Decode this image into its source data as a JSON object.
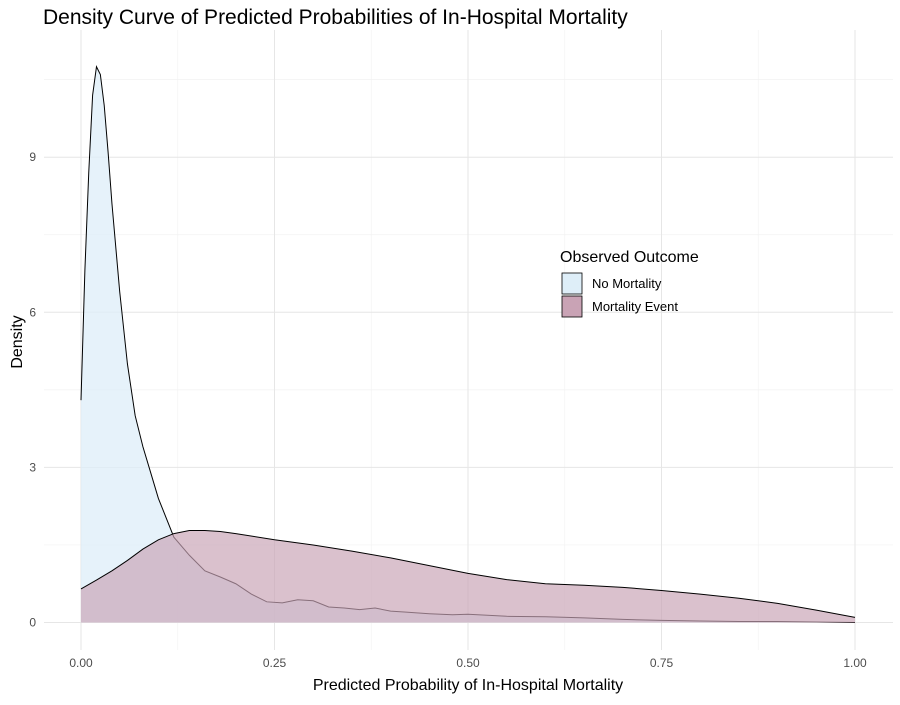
{
  "chart_data": {
    "type": "area",
    "title": "Density Curve of Predicted Probabilities of In-Hospital Mortality",
    "xlabel": "Predicted Probability of In-Hospital Mortality",
    "ylabel": "Density",
    "xlim": [
      0,
      1
    ],
    "ylim": [
      0,
      10.8
    ],
    "x_ticks": [
      0,
      0.25,
      0.5,
      0.75,
      1.0
    ],
    "x_tick_labels": [
      "0.00",
      "0.25",
      "0.50",
      "0.75",
      "1.00"
    ],
    "y_ticks": [
      0,
      3,
      6,
      9
    ],
    "y_tick_labels": [
      "0",
      "3",
      "6",
      "9"
    ],
    "grid": true,
    "legend": {
      "title": "Observed Outcome",
      "position": "right-center"
    },
    "series": [
      {
        "name": "No Mortality",
        "fill": "#deeef8",
        "stroke": "#000000",
        "x": [
          0.0,
          0.005,
          0.01,
          0.015,
          0.02,
          0.025,
          0.03,
          0.035,
          0.04,
          0.05,
          0.06,
          0.07,
          0.08,
          0.09,
          0.1,
          0.12,
          0.14,
          0.16,
          0.18,
          0.2,
          0.22,
          0.24,
          0.26,
          0.28,
          0.3,
          0.32,
          0.34,
          0.36,
          0.38,
          0.4,
          0.42,
          0.45,
          0.48,
          0.5,
          0.55,
          0.6,
          0.65,
          0.7,
          0.75,
          0.8,
          0.85,
          0.9,
          0.95,
          1.0
        ],
        "y": [
          4.3,
          6.8,
          8.7,
          10.2,
          10.75,
          10.6,
          10.0,
          9.1,
          8.1,
          6.4,
          5.0,
          4.0,
          3.4,
          2.9,
          2.4,
          1.65,
          1.3,
          1.0,
          0.88,
          0.75,
          0.55,
          0.4,
          0.38,
          0.44,
          0.42,
          0.3,
          0.28,
          0.25,
          0.28,
          0.22,
          0.2,
          0.17,
          0.15,
          0.16,
          0.12,
          0.11,
          0.09,
          0.06,
          0.04,
          0.03,
          0.02,
          0.02,
          0.01,
          0.0
        ]
      },
      {
        "name": "Mortality Event",
        "fill": "#c9a3b5",
        "stroke": "#000000",
        "x": [
          0.0,
          0.02,
          0.04,
          0.06,
          0.08,
          0.1,
          0.12,
          0.14,
          0.16,
          0.18,
          0.2,
          0.25,
          0.3,
          0.35,
          0.4,
          0.45,
          0.5,
          0.55,
          0.6,
          0.65,
          0.7,
          0.75,
          0.8,
          0.85,
          0.9,
          0.95,
          1.0
        ],
        "y": [
          0.65,
          0.82,
          1.0,
          1.2,
          1.42,
          1.6,
          1.72,
          1.78,
          1.78,
          1.76,
          1.72,
          1.6,
          1.5,
          1.38,
          1.25,
          1.1,
          0.95,
          0.83,
          0.75,
          0.72,
          0.68,
          0.62,
          0.55,
          0.47,
          0.37,
          0.24,
          0.1
        ]
      }
    ]
  }
}
